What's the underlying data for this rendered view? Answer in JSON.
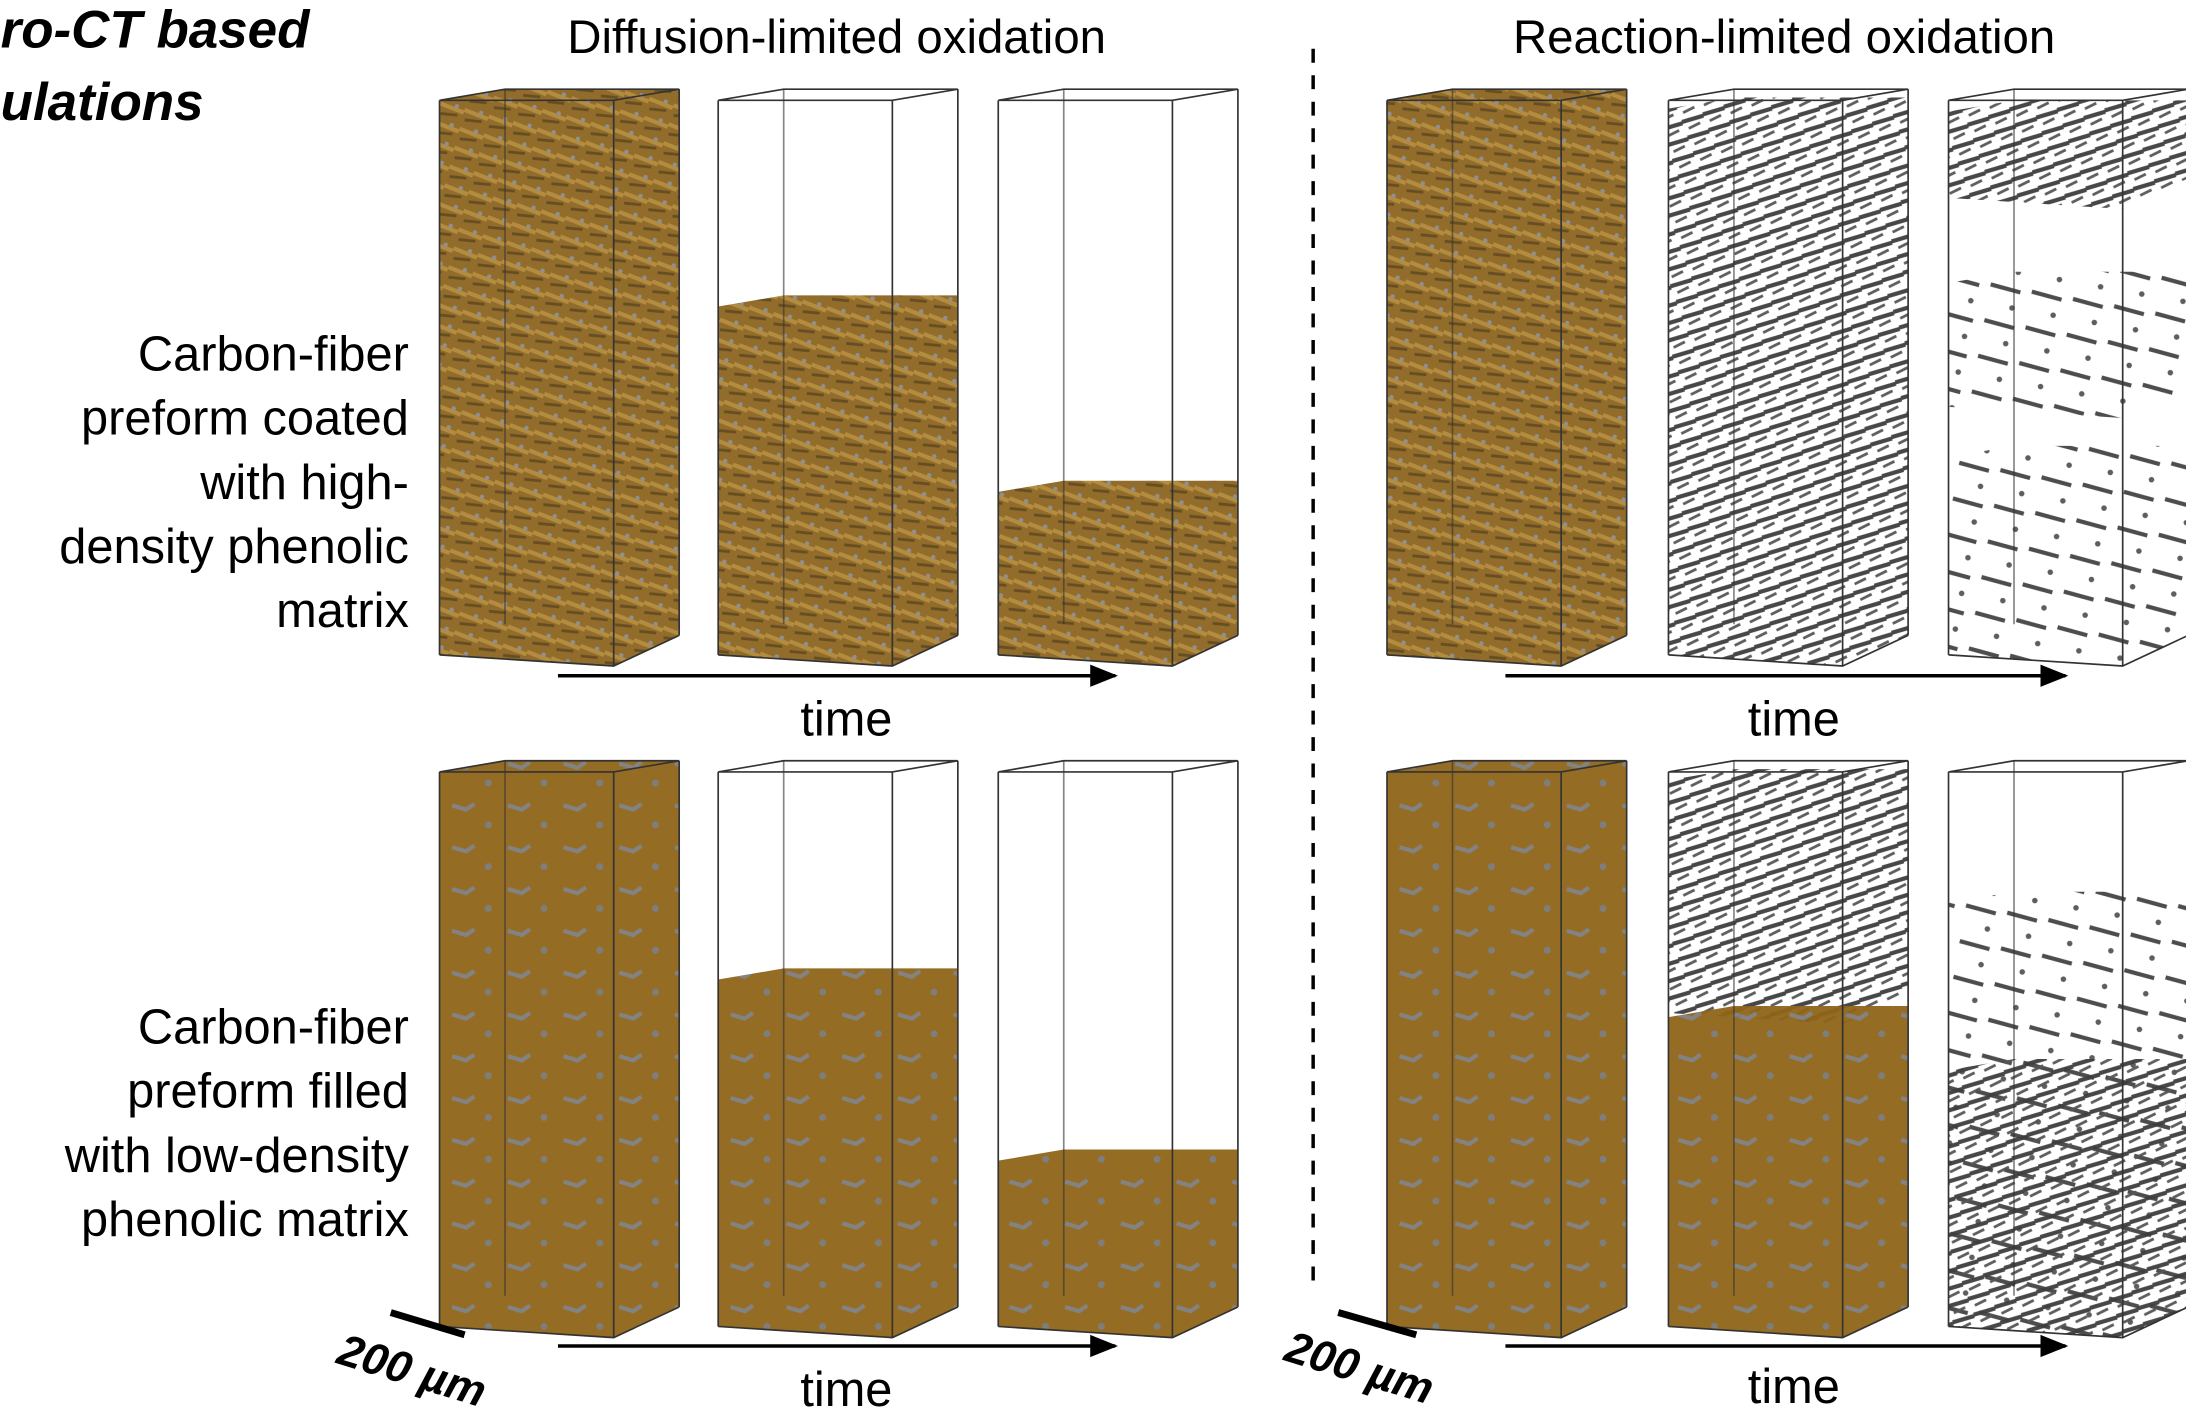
{
  "title_lines": [
    "ro-CT based",
    "ulations"
  ],
  "columns": [
    "Diffusion-limited oxidation",
    "Reaction-limited oxidation"
  ],
  "rows": [
    {
      "label_lines": [
        "Carbon-fiber",
        "preform coated",
        "with high-",
        "density phenolic",
        "matrix"
      ]
    },
    {
      "label_lines": [
        "Carbon-fiber",
        "preform filled",
        "with low-density",
        "phenolic matrix"
      ]
    }
  ],
  "time_labels": [
    "time",
    "time",
    "time",
    "time"
  ],
  "scale_bars": [
    "200 µm",
    "200 µm"
  ]
}
